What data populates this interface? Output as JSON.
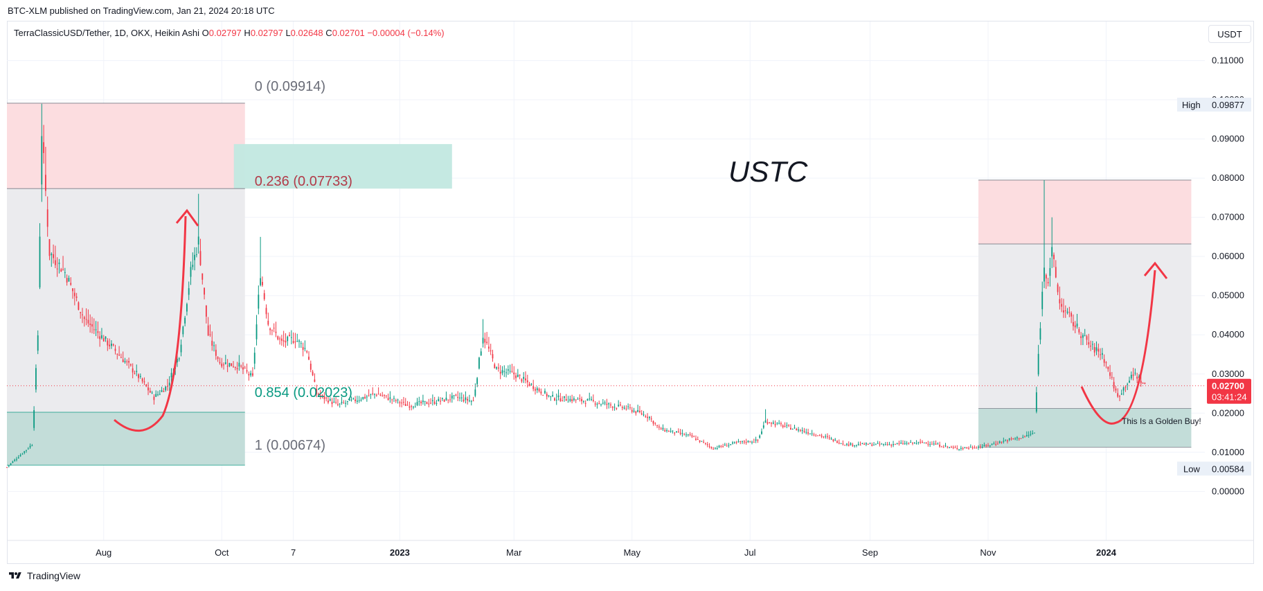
{
  "caption": "BTC-XLM published on TradingView.com, Jan 21, 2024 20:18 UTC",
  "legend": {
    "symbol": "TerraClassicUSD/Tether, 1D, OKX, Heikin Ashi",
    "o_label": "O",
    "o_value": "0.02797",
    "h_label": "H",
    "h_value": "0.02797",
    "l_label": "L",
    "l_value": "0.02648",
    "c_label": "C",
    "c_value": "0.02701",
    "change": "−0.00004 (−0.14%)"
  },
  "currency_button": "USDT",
  "footer_brand": "TradingView",
  "colors": {
    "up": "#089981",
    "down": "#f23645",
    "red_zone": "#fcdde0",
    "grey_zone": "#ebebee",
    "green_zone": "#c3ddd9",
    "teal_box": "#c2e8e0",
    "arrow": "#f23645",
    "price_line": "#f23645"
  },
  "chart_data": {
    "type": "candlestick",
    "title": "USTC",
    "y_ticks": [
      "0.11000",
      "0.10000",
      "0.09000",
      "0.08000",
      "0.07000",
      "0.06000",
      "0.05000",
      "0.04000",
      "0.03000",
      "0.02000",
      "0.01000",
      "0.00000"
    ],
    "y_tick_values": [
      0.11,
      0.1,
      0.09,
      0.08,
      0.07,
      0.06,
      0.05,
      0.04,
      0.03,
      0.02,
      0.01,
      0.0
    ],
    "x_ticks": [
      {
        "label": "Aug",
        "date": "2022-08-01",
        "bold": false
      },
      {
        "label": "Oct",
        "date": "2022-10-01",
        "bold": false
      },
      {
        "label": "7",
        "date": "2022-11-07",
        "bold": false
      },
      {
        "label": "2023",
        "date": "2023-01-01",
        "bold": true
      },
      {
        "label": "Mar",
        "date": "2023-03-01",
        "bold": false
      },
      {
        "label": "May",
        "date": "2023-05-01",
        "bold": false
      },
      {
        "label": "Jul",
        "date": "2023-07-01",
        "bold": false
      },
      {
        "label": "Sep",
        "date": "2023-09-01",
        "bold": false
      },
      {
        "label": "Nov",
        "date": "2023-11-01",
        "bold": false
      },
      {
        "label": "2024",
        "date": "2024-01-01",
        "bold": true
      }
    ],
    "x_range": [
      "2022-06-12",
      "2024-02-21"
    ],
    "y_range": [
      -0.0125,
      0.12
    ],
    "high_label": "High",
    "high_value": "0.09877",
    "low_label": "Low",
    "low_value": "0.00584",
    "last_price": "0.02700",
    "countdown": "03:41:24",
    "fib_levels": [
      {
        "label": "0 (0.09914)",
        "value": 0.09914
      },
      {
        "label": "0.236 (0.07733)",
        "value": 0.07733
      },
      {
        "label": "0.854 (0.02023)",
        "value": 0.02023
      },
      {
        "label": "1 (0.00674)",
        "value": 0.00674
      }
    ],
    "right_zone_levels": {
      "top": 0.0795,
      "red_bottom": 0.0632,
      "green_top": 0.0212,
      "bottom": 0.0113
    },
    "annotation": "This Is a Golden Buy!",
    "path_points": [
      [
        "2022-06-12",
        0.0062
      ],
      [
        "2022-06-25",
        0.012
      ],
      [
        "2022-06-28",
        0.04
      ],
      [
        "2022-06-30",
        0.092
      ],
      [
        "2022-07-04",
        0.061
      ],
      [
        "2022-07-12",
        0.056
      ],
      [
        "2022-07-22",
        0.044
      ],
      [
        "2022-08-05",
        0.037
      ],
      [
        "2022-08-18",
        0.03
      ],
      [
        "2022-08-27",
        0.024
      ],
      [
        "2022-09-03",
        0.027
      ],
      [
        "2022-09-09",
        0.035
      ],
      [
        "2022-09-15",
        0.056
      ],
      [
        "2022-09-19",
        0.064
      ],
      [
        "2022-09-24",
        0.04
      ],
      [
        "2022-09-30",
        0.033
      ],
      [
        "2022-10-10",
        0.032
      ],
      [
        "2022-10-17",
        0.029
      ],
      [
        "2022-10-21",
        0.056
      ],
      [
        "2022-10-25",
        0.043
      ],
      [
        "2022-11-01",
        0.038
      ],
      [
        "2022-11-08",
        0.039
      ],
      [
        "2022-11-14",
        0.036
      ],
      [
        "2022-11-19",
        0.025
      ],
      [
        "2022-11-30",
        0.022
      ],
      [
        "2022-12-20",
        0.025
      ],
      [
        "2023-01-05",
        0.022
      ],
      [
        "2023-01-20",
        0.023
      ],
      [
        "2023-01-30",
        0.024
      ],
      [
        "2023-02-08",
        0.023
      ],
      [
        "2023-02-13",
        0.04
      ],
      [
        "2023-02-20",
        0.031
      ],
      [
        "2023-03-01",
        0.03
      ],
      [
        "2023-03-20",
        0.024
      ],
      [
        "2023-04-10",
        0.023
      ],
      [
        "2023-04-30",
        0.021
      ],
      [
        "2023-05-10",
        0.019
      ],
      [
        "2023-05-15",
        0.016
      ],
      [
        "2023-06-01",
        0.014
      ],
      [
        "2023-06-12",
        0.011
      ],
      [
        "2023-06-25",
        0.0125
      ],
      [
        "2023-07-05",
        0.013
      ],
      [
        "2023-07-09",
        0.018
      ],
      [
        "2023-07-20",
        0.0165
      ],
      [
        "2023-08-05",
        0.0145
      ],
      [
        "2023-08-20",
        0.012
      ],
      [
        "2023-09-10",
        0.012
      ],
      [
        "2023-09-30",
        0.0125
      ],
      [
        "2023-10-15",
        0.011
      ],
      [
        "2023-10-30",
        0.0115
      ],
      [
        "2023-11-10",
        0.013
      ],
      [
        "2023-11-20",
        0.014
      ],
      [
        "2023-11-25",
        0.015
      ],
      [
        "2023-11-27",
        0.035
      ],
      [
        "2023-11-30",
        0.058
      ],
      [
        "2023-12-02",
        0.054
      ],
      [
        "2023-12-04",
        0.061
      ],
      [
        "2023-12-08",
        0.048
      ],
      [
        "2023-12-15",
        0.043
      ],
      [
        "2023-12-24",
        0.037
      ],
      [
        "2023-12-30",
        0.035
      ],
      [
        "2024-01-03",
        0.03
      ],
      [
        "2024-01-07",
        0.024
      ],
      [
        "2024-01-12",
        0.028
      ],
      [
        "2024-01-16",
        0.03
      ],
      [
        "2024-01-21",
        0.027
      ]
    ],
    "spikes": [
      [
        "2022-06-30",
        0.099
      ],
      [
        "2022-07-02",
        0.088
      ],
      [
        "2022-09-19",
        0.076
      ],
      [
        "2022-10-21",
        0.065
      ],
      [
        "2023-02-13",
        0.044
      ],
      [
        "2023-11-30",
        0.0795
      ],
      [
        "2023-12-04",
        0.07
      ],
      [
        "2023-07-09",
        0.021
      ]
    ]
  }
}
